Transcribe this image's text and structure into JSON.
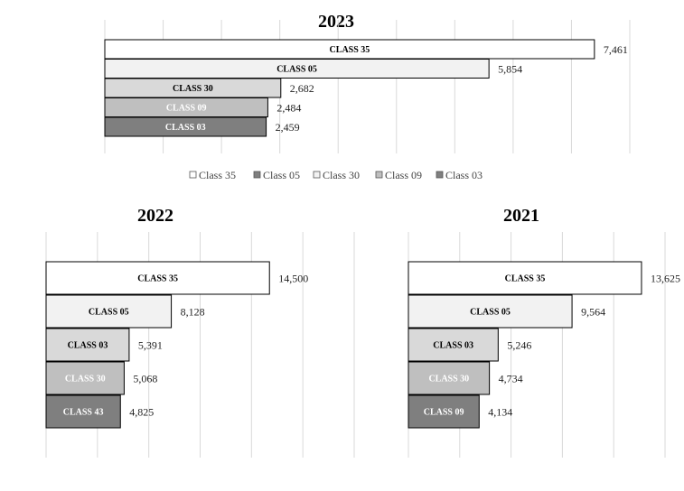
{
  "chart_data": [
    {
      "type": "bar",
      "orientation": "horizontal",
      "title": "2023",
      "categories": [
        "CLASS 35",
        "CLASS 05",
        "CLASS 30",
        "CLASS 09",
        "CLASS 03"
      ],
      "values": [
        7461,
        5854,
        2682,
        2484,
        2459
      ],
      "value_labels": [
        "7,461",
        "5,854",
        "2,682",
        "2,484",
        "2,459"
      ],
      "xlim": [
        0,
        8000
      ],
      "grid": true,
      "legend_placement": "bottom",
      "legend": [
        {
          "label": "Class 35",
          "color": "#ffffff"
        },
        {
          "label": "Class 05",
          "color": "#7f7f7f"
        },
        {
          "label": "Class 30",
          "color": "#f2f2f2"
        },
        {
          "label": "Class 09",
          "color": "#bfbfbf"
        },
        {
          "label": "Class 03",
          "color": "#7f7f7f"
        }
      ],
      "bar_colors": [
        "#ffffff",
        "#f2f2f2",
        "#d9d9d9",
        "#bfbfbf",
        "#7f7f7f"
      ],
      "bar_text_colors": [
        "#000000",
        "#000000",
        "#000000",
        "#ffffff",
        "#ffffff"
      ]
    },
    {
      "type": "bar",
      "orientation": "horizontal",
      "title": "2022",
      "categories": [
        "CLASS 35",
        "CLASS 05",
        "CLASS 03",
        "CLASS 30",
        "CLASS 43"
      ],
      "values": [
        14500,
        8128,
        5391,
        5068,
        4825
      ],
      "value_labels": [
        "14,500",
        "8,128",
        "5,391",
        "5,068",
        "4,825"
      ],
      "xlim": [
        0,
        20000
      ],
      "grid": true,
      "bar_colors": [
        "#ffffff",
        "#f2f2f2",
        "#d9d9d9",
        "#bfbfbf",
        "#7f7f7f"
      ],
      "bar_text_colors": [
        "#000000",
        "#000000",
        "#000000",
        "#ffffff",
        "#ffffff"
      ]
    },
    {
      "type": "bar",
      "orientation": "horizontal",
      "title": "2021",
      "categories": [
        "CLASS 35",
        "CLASS 05",
        "CLASS 03",
        "CLASS 30",
        "CLASS 09"
      ],
      "values": [
        13625,
        9564,
        5246,
        4734,
        4134
      ],
      "value_labels": [
        "13,625",
        "9,564",
        "5,246",
        "4,734",
        "4,134"
      ],
      "xlim": [
        0,
        15000
      ],
      "grid": true,
      "bar_colors": [
        "#ffffff",
        "#f2f2f2",
        "#d9d9d9",
        "#bfbfbf",
        "#7f7f7f"
      ],
      "bar_text_colors": [
        "#000000",
        "#000000",
        "#000000",
        "#ffffff",
        "#ffffff"
      ]
    }
  ]
}
